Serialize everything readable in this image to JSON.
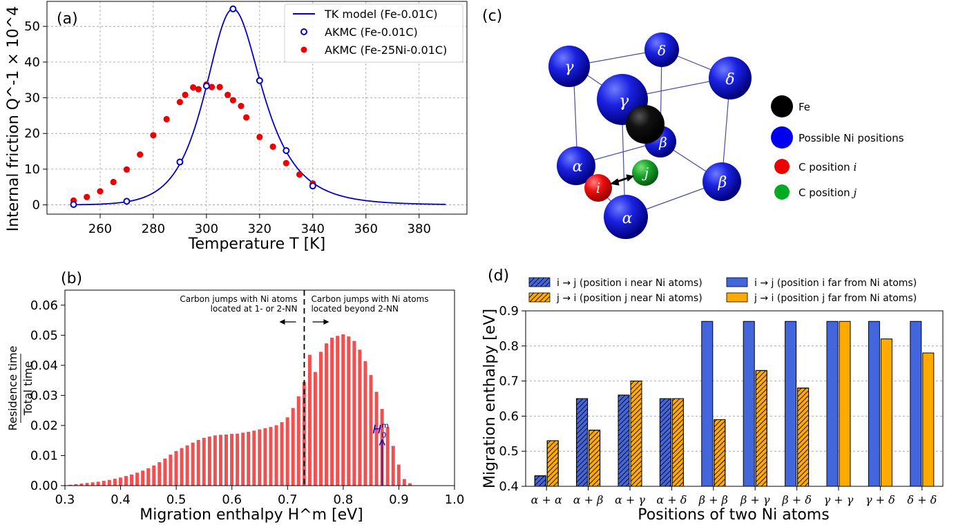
{
  "panels": {
    "a": "(a)",
    "b": "(b)",
    "c": "(c)",
    "d": "(d)"
  },
  "chart_data": [
    {
      "id": "a",
      "type": "line",
      "xlabel": "Temperature T [K]",
      "ylabel": "Internal friction Q^-1 × 10^4 [-]",
      "xlim": [
        240,
        398
      ],
      "ylim": [
        -2.6,
        57
      ],
      "xticks": [
        260,
        280,
        300,
        320,
        340,
        360,
        380
      ],
      "yticks": [
        0,
        10,
        20,
        30,
        40,
        50
      ],
      "grid": true,
      "legend_position": "top-right",
      "series": [
        {
          "name": "TK model (Fe-0.01C)",
          "kind": "line",
          "color": "#0000cc",
          "curve": {
            "peak_T": 310,
            "peak_value": 54.9,
            "activation_energy_eV": 0.87,
            "T_range": [
              250,
              390
            ]
          }
        },
        {
          "name": "AKMC (Fe-0.01C)",
          "kind": "open-circle",
          "color": "#0000cc",
          "x": [
            250,
            270,
            290,
            300,
            310,
            320,
            330,
            340
          ],
          "y": [
            0.1,
            1.0,
            12.0,
            33.3,
            54.9,
            34.8,
            15.2,
            5.3
          ]
        },
        {
          "name": "AKMC (Fe-25Ni-0.01C)",
          "kind": "filled-circle",
          "color": "#ee0000",
          "x": [
            250,
            255,
            260,
            265,
            270,
            275,
            280,
            285,
            290,
            292,
            295,
            297,
            300,
            302,
            305,
            308,
            310,
            313,
            315,
            320,
            325,
            330,
            335,
            340
          ],
          "y": [
            1.2,
            2.2,
            3.8,
            6.4,
            9.9,
            14.1,
            19.5,
            24.0,
            28.8,
            30.8,
            32.9,
            32.4,
            33.7,
            33.0,
            33.0,
            30.8,
            29.3,
            27.7,
            24.5,
            19.0,
            16.3,
            11.7,
            8.5,
            6.0
          ]
        }
      ]
    },
    {
      "id": "b",
      "type": "bar",
      "xlabel": "Migration enthalpy H^m [eV]",
      "ylabel_numerator": "Residence time",
      "ylabel_denominator": "Total time",
      "xlim": [
        0.3,
        1.0
      ],
      "ylim": [
        0,
        0.065
      ],
      "xticks": [
        0.3,
        0.4,
        0.5,
        0.6,
        0.7,
        0.8,
        0.9,
        1.0
      ],
      "yticks": [
        0.0,
        0.01,
        0.02,
        0.03,
        0.04,
        0.05,
        0.06
      ],
      "bar_color": "#f05050",
      "bin_start": 0.31,
      "bin_width": 0.01,
      "values": [
        0.0003,
        0.0005,
        0.0007,
        0.0009,
        0.0011,
        0.0013,
        0.0016,
        0.0019,
        0.0023,
        0.0027,
        0.0032,
        0.0037,
        0.0043,
        0.005,
        0.0058,
        0.0067,
        0.0078,
        0.009,
        0.0103,
        0.0115,
        0.0125,
        0.0134,
        0.0143,
        0.0152,
        0.0159,
        0.0163,
        0.0167,
        0.0169,
        0.017,
        0.0172,
        0.0173,
        0.0176,
        0.0179,
        0.0183,
        0.0187,
        0.0191,
        0.0195,
        0.0201,
        0.0211,
        0.0227,
        0.0258,
        0.0297,
        0.0345,
        0.0435,
        0.0378,
        0.0445,
        0.0473,
        0.0492,
        0.0498,
        0.0503,
        0.0496,
        0.0481,
        0.0452,
        0.0414,
        0.0368,
        0.0312,
        0.0255,
        0.0195,
        0.0132,
        0.007,
        0.0022,
        0.0008
      ],
      "divider_x": 0.73,
      "annotation_left": [
        "Carbon jumps with Ni atoms",
        "located at 1- or 2-NN"
      ],
      "annotation_right": [
        "Carbon jumps with Ni atoms",
        "located beyond 2-NN"
      ],
      "marker_x": 0.87,
      "marker_y": 0.0155,
      "marker_label": "H",
      "marker_sup": "m",
      "marker_sub": "0",
      "marker_color": "#0000cc"
    },
    {
      "id": "d",
      "type": "bar",
      "xlabel": "Positions of two Ni atoms",
      "ylabel": "Migration enthalpy [eV]",
      "ylim": [
        0.4,
        0.9
      ],
      "yticks": [
        0.4,
        0.5,
        0.6,
        0.7,
        0.8,
        0.9
      ],
      "grid": true,
      "categories": [
        "α + α",
        "α + β",
        "α + γ",
        "α + δ",
        "β + β",
        "β + γ",
        "β + δ",
        "γ + γ",
        "γ + δ",
        "δ + δ"
      ],
      "series": [
        {
          "name": "i → j (position i near Ni atoms)",
          "color": "#4466dd",
          "values": [
            0.43,
            0.65,
            0.66,
            0.65,
            0.87,
            0.87,
            0.87,
            0.87,
            0.87,
            0.87
          ],
          "hatched": [
            true,
            true,
            true,
            true,
            false,
            false,
            false,
            false,
            false,
            false
          ]
        },
        {
          "name": "j → i (position j near Ni atoms)",
          "color": "#ffaa00",
          "values": [
            0.53,
            0.56,
            0.7,
            0.65,
            0.59,
            0.73,
            0.68,
            0.87,
            0.82,
            0.78
          ],
          "hatched": [
            true,
            true,
            true,
            true,
            true,
            true,
            true,
            false,
            false,
            false
          ]
        }
      ],
      "legend_entries": [
        {
          "label": "i → j (position i near Ni atoms)",
          "color": "#4466dd",
          "hatched": true
        },
        {
          "label": "j → i (position j near Ni atoms)",
          "color": "#ffaa00",
          "hatched": true
        },
        {
          "label": "i → j (position i far from Ni atoms)",
          "color": "#4466dd",
          "hatched": false
        },
        {
          "label": "j → i (position j far from Ni atoms)",
          "color": "#ffaa00",
          "hatched": false
        }
      ],
      "legend_position": "top"
    }
  ],
  "structure_c": {
    "legend": [
      {
        "label": "Fe",
        "color": "#000000"
      },
      {
        "label": "Possible Ni positions",
        "color": "#0000ee"
      },
      {
        "label": "C position i",
        "color": "#ee0000"
      },
      {
        "label": "C position j",
        "color": "#00aa22"
      }
    ],
    "atom_labels": {
      "alpha": "α",
      "beta": "β",
      "gamma": "γ",
      "delta": "δ",
      "i": "i",
      "j": "j"
    }
  }
}
